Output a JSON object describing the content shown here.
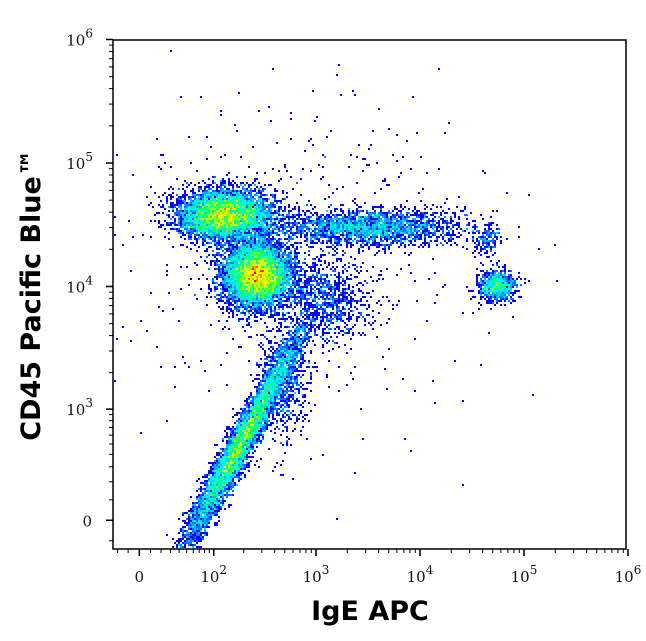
{
  "chart_data": {
    "type": "heatmap",
    "subtype": "flow-cytometry density dot plot",
    "xlabel": "IgE APC",
    "ylabel": "CD45 Pacific Blue™",
    "xscale": "biexponential",
    "yscale": "biexponential",
    "x_ticks": [
      {
        "value": 0,
        "label": "0"
      },
      {
        "value": 100,
        "label": "10",
        "exp": "2"
      },
      {
        "value": 1000,
        "label": "10",
        "exp": "3"
      },
      {
        "value": 10000,
        "label": "10",
        "exp": "4"
      },
      {
        "value": 100000,
        "label": "10",
        "exp": "5"
      },
      {
        "value": 1000000,
        "label": "10",
        "exp": "6"
      }
    ],
    "y_ticks": [
      {
        "value": 0,
        "label": "0"
      },
      {
        "value": 1000,
        "label": "10",
        "exp": "3"
      },
      {
        "value": 10000,
        "label": "10",
        "exp": "4"
      },
      {
        "value": 100000,
        "label": "10",
        "exp": "5"
      },
      {
        "value": 1000000,
        "label": "10",
        "exp": "6"
      }
    ],
    "xlim": [
      -60,
      1000000
    ],
    "ylim": [
      -150,
      1000000
    ],
    "grid": false,
    "colormap": [
      "#0000ff",
      "#00a0ff",
      "#00ffff",
      "#00ff60",
      "#c0ff00",
      "#ffff00",
      "#ff8000",
      "#ff0000"
    ],
    "populations": [
      {
        "x": 130,
        "y": 38000,
        "sx": 0.22,
        "sy": 0.1,
        "n": 6500
      },
      {
        "x": 270,
        "y": 12500,
        "sx": 0.16,
        "sy": 0.13,
        "n": 7500
      },
      {
        "x": 190,
        "y": 520,
        "sx": 0.28,
        "sy": 0.11,
        "n": 6500,
        "corr": 0.55
      },
      {
        "x": 3000,
        "y": 30000,
        "sx": 0.45,
        "sy": 0.07,
        "n": 2600
      },
      {
        "x": 55000,
        "y": 10000,
        "sx": 0.09,
        "sy": 0.06,
        "n": 900
      },
      {
        "x": 45000,
        "y": 24000,
        "sx": 0.08,
        "sy": 0.07,
        "n": 160
      },
      {
        "x": 1200,
        "y": 8000,
        "sx": 0.22,
        "sy": 0.18,
        "n": 900
      },
      {
        "x": 500,
        "y": 1800,
        "sx": 0.12,
        "sy": 0.25,
        "n": 700
      },
      {
        "x": 600,
        "y": 20000,
        "sx": 0.9,
        "sy": 0.7,
        "n": 500
      }
    ]
  }
}
